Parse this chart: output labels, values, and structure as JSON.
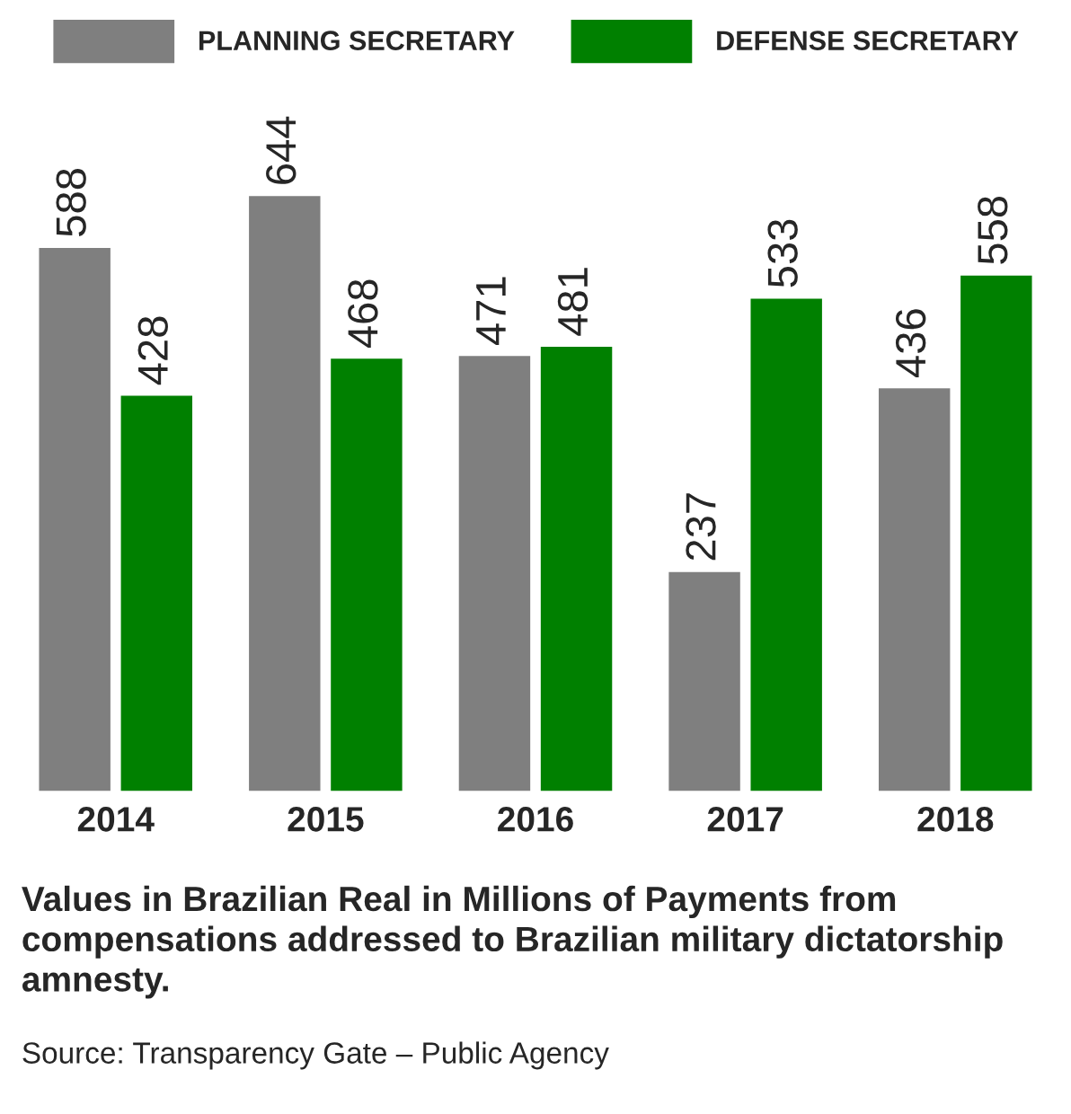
{
  "chart_data": {
    "type": "bar",
    "categories": [
      "2014",
      "2015",
      "2016",
      "2017",
      "2018"
    ],
    "series": [
      {
        "name": "PLANNING SECRETARY",
        "color": "#7f7f7f",
        "values": [
          588,
          644,
          471,
          237,
          436
        ]
      },
      {
        "name": "DEFENSE SECRETARY",
        "color": "#008000",
        "values": [
          428,
          468,
          481,
          533,
          558
        ]
      }
    ],
    "data_labels": true,
    "legend": "top",
    "grid": false,
    "annotations": [
      "Values in Brazilian Real in Millions of Payments from compensations addressed to Brazilian military dictatorship amnesty.",
      "Source: Transparency Gate – Public Agency"
    ]
  }
}
